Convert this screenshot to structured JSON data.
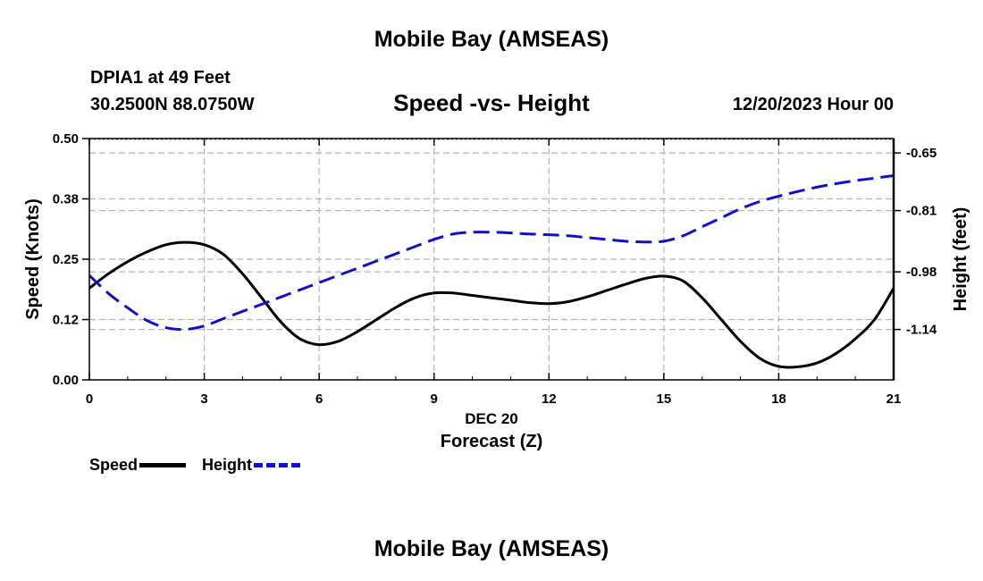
{
  "header": {
    "title": "Mobile Bay (AMSEAS)",
    "station": "DPIA1 at 49 Feet",
    "coordinates": "30.2500N  88.0750W",
    "subtitle": "Speed -vs- Height",
    "timestamp": "12/20/2023 Hour 00"
  },
  "footer": {
    "title": "Mobile Bay (AMSEAS)"
  },
  "legend": {
    "speed_label": "Speed",
    "height_label": "Height"
  },
  "colors": {
    "speed": "#000000",
    "height": "#1010c8",
    "grid": "#b4b4b4"
  },
  "chart_data": {
    "type": "line",
    "title": "Speed -vs- Height",
    "xlabel": "Forecast (Z)",
    "xlabel_date": "DEC 20",
    "ylabel_left": "Speed (Knots)",
    "ylabel_right": "Height (feet)",
    "xlim": [
      0,
      21
    ],
    "ylim_left": [
      0,
      0.5
    ],
    "ylim_right": [
      -1.28,
      -0.61
    ],
    "x_ticks": [
      0,
      3,
      6,
      9,
      12,
      15,
      18,
      21
    ],
    "x_tick_labels": [
      "0",
      "3",
      "6",
      "9",
      "12",
      "15",
      "18",
      "21"
    ],
    "y_left_ticks": [
      0,
      0.125,
      0.25,
      0.375,
      0.5
    ],
    "y_left_tick_labels": [
      "0.00",
      "0.12",
      "0.25",
      "0.38",
      "0.50"
    ],
    "y_right_ticks": [
      -1.14,
      -0.98,
      -0.81,
      -0.65
    ],
    "y_right_tick_labels": [
      "-1.14",
      "-0.98",
      "-0.81",
      "-0.65"
    ],
    "grid": true,
    "legend_position": "bottom-left",
    "series": [
      {
        "name": "Speed",
        "axis": "left",
        "style": "solid",
        "x": [
          0,
          0.5,
          1,
          1.5,
          2,
          2.5,
          3,
          3.5,
          4,
          4.5,
          5,
          5.5,
          6,
          6.5,
          7,
          7.5,
          8,
          8.5,
          9,
          9.5,
          10,
          10.5,
          11,
          11.5,
          12,
          12.5,
          13,
          13.5,
          14,
          14.5,
          15,
          15.5,
          16,
          16.5,
          17,
          17.5,
          18,
          18.5,
          19,
          19.5,
          20,
          20.5,
          21
        ],
        "values": [
          0.19,
          0.22,
          0.245,
          0.265,
          0.28,
          0.285,
          0.28,
          0.26,
          0.22,
          0.17,
          0.12,
          0.085,
          0.073,
          0.08,
          0.1,
          0.125,
          0.15,
          0.17,
          0.18,
          0.18,
          0.175,
          0.17,
          0.165,
          0.16,
          0.158,
          0.162,
          0.172,
          0.185,
          0.198,
          0.21,
          0.215,
          0.205,
          0.17,
          0.125,
          0.08,
          0.045,
          0.028,
          0.027,
          0.035,
          0.055,
          0.085,
          0.125,
          0.19
        ]
      },
      {
        "name": "Height",
        "axis": "right",
        "style": "dashed",
        "x": [
          0,
          0.5,
          1,
          1.5,
          2,
          2.5,
          3,
          3.5,
          4,
          4.5,
          5,
          5.5,
          6,
          6.5,
          7,
          7.5,
          8,
          8.5,
          9,
          9.5,
          10,
          10.5,
          11,
          11.5,
          12,
          12.5,
          13,
          13.5,
          14,
          14.5,
          15,
          15.5,
          16,
          16.5,
          17,
          17.5,
          18,
          18.5,
          19,
          19.5,
          20,
          20.5,
          21
        ],
        "values": [
          -0.99,
          -1.04,
          -1.08,
          -1.115,
          -1.135,
          -1.14,
          -1.13,
          -1.11,
          -1.09,
          -1.07,
          -1.05,
          -1.03,
          -1.01,
          -0.99,
          -0.97,
          -0.95,
          -0.93,
          -0.91,
          -0.89,
          -0.875,
          -0.87,
          -0.87,
          -0.872,
          -0.875,
          -0.877,
          -0.88,
          -0.885,
          -0.89,
          -0.895,
          -0.897,
          -0.895,
          -0.88,
          -0.855,
          -0.83,
          -0.805,
          -0.785,
          -0.77,
          -0.757,
          -0.745,
          -0.735,
          -0.727,
          -0.72,
          -0.713
        ]
      }
    ]
  }
}
